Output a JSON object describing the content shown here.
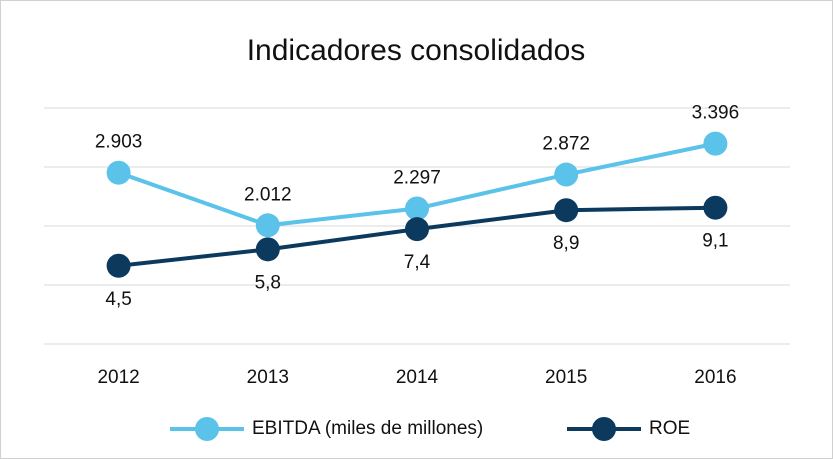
{
  "chart_data": {
    "type": "line",
    "title": "Indicadores consolidados",
    "categories": [
      "2012",
      "2013",
      "2014",
      "2015",
      "2016"
    ],
    "series": [
      {
        "name": "EBITDA (miles de millones)",
        "color": "#5bc3e9",
        "values": [
          2903,
          2012,
          2297,
          2872,
          3396
        ],
        "value_labels": [
          "2.903",
          "2.012",
          "2.297",
          "2.872",
          "3.396"
        ]
      },
      {
        "name": "ROE",
        "color": "#0c3a5f",
        "axis": "y2",
        "values": [
          4.5,
          5.8,
          7.4,
          8.9,
          9.1
        ],
        "value_labels": [
          "4,5",
          "5,8",
          "7,4",
          "8,9",
          "9,1"
        ]
      }
    ],
    "ylim": [
      0,
      4000
    ],
    "yticks": [
      0,
      1000,
      2000,
      3000,
      4000
    ],
    "y2lim": [
      -1.7,
      17
    ],
    "grid": true,
    "legend": "bottom"
  }
}
